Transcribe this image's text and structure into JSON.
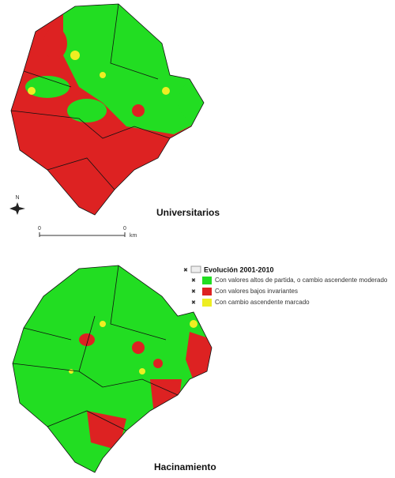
{
  "maps": [
    {
      "title": "Universitarios"
    },
    {
      "title": "Hacinamiento"
    }
  ],
  "legend": {
    "title": "Evolución 2001-2010",
    "items": [
      {
        "label": "Con valores altos de partida, o cambio ascendente moderado",
        "color": "#22dd22"
      },
      {
        "label": "Con valores bajos invariantes",
        "color": "#dd2222"
      },
      {
        "label": "Con cambio ascendente marcado",
        "color": "#eeee22"
      }
    ]
  },
  "scale_bar": {
    "labels": [
      "0",
      "0"
    ],
    "unit": "km"
  },
  "north": "N"
}
